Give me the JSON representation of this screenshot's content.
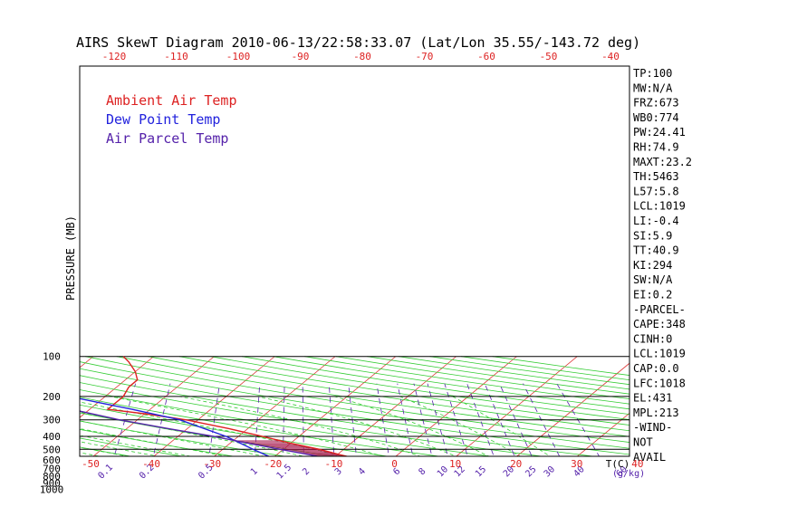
{
  "chart_data": {
    "type": "line",
    "title": "AIRS SkewT Diagram 2010-06-13/22:58:33.07 (Lat/Lon 35.55/-143.72 deg)",
    "ylabel": "PRESSURE (MB)",
    "pressure_ticks": [
      "100",
      "200",
      "300",
      "400",
      "500",
      "600",
      "700",
      "800",
      "900",
      "1000"
    ],
    "top_temp_ticks": [
      "-120",
      "-110",
      "-100",
      "-90",
      "-80",
      "-70",
      "-60",
      "-50",
      "-40"
    ],
    "bottom_temp_ticks": [
      "-50",
      "-40",
      "-30",
      "-20",
      "-10",
      "0",
      "10",
      "20",
      "30",
      "40"
    ],
    "bottom_unit": "T(C)",
    "mixing_ratio_labels": [
      "0.1",
      "0.2",
      "0.5",
      "1",
      "1.5",
      "2",
      "3",
      "4",
      "6",
      "8",
      "10",
      "12",
      "15",
      "20",
      "25",
      "30",
      "40",
      "60"
    ],
    "mixing_ratio_unit": "(g/kg)",
    "legend": [
      {
        "label": "Ambient Air Temp",
        "color": "#dd2222"
      },
      {
        "label": "Dew Point Temp",
        "color": "#2222dd"
      },
      {
        "label": "Air Parcel Temp",
        "color": "#5522aa"
      }
    ],
    "ylim": [
      1050,
      100
    ],
    "series": [
      {
        "name": "Ambient Air Temp",
        "color": "#dd2222",
        "pressure": [
          1000,
          950,
          900,
          850,
          800,
          750,
          700,
          650,
          600,
          550,
          500,
          450,
          400,
          350,
          300,
          270,
          250,
          200,
          170,
          150,
          130,
          110,
          100
        ],
        "temp": [
          20,
          15,
          12,
          10,
          8,
          5.5,
          2.5,
          -1,
          -5,
          -9.5,
          -14,
          -20,
          -26,
          -33,
          -42,
          -50,
          -57,
          -57,
          -58,
          -58,
          -60,
          -63,
          -65
        ]
      },
      {
        "name": "Dew Point Temp",
        "color": "#2222dd",
        "pressure": [
          1000,
          950,
          900,
          850,
          800,
          700,
          600,
          500,
          400,
          300,
          250,
          200,
          160,
          130,
          110,
          100
        ],
        "temp": [
          17,
          11,
          4,
          -1,
          -5,
          -13,
          -19,
          -25,
          -32,
          -43,
          -53,
          -66,
          -80,
          -90,
          -94,
          -96
        ]
      },
      {
        "name": "Air Parcel Temp",
        "color": "#5522aa",
        "pressure": [
          1000,
          950,
          900,
          850,
          800,
          750,
          700,
          650,
          600,
          550,
          500,
          450,
          400,
          350,
          300,
          250,
          200,
          160,
          130,
          100
        ],
        "temp": [
          20,
          15.3,
          12.6,
          9.6,
          6.3,
          2.9,
          -1,
          -5,
          -9.5,
          -14.5,
          -20.5,
          -27,
          -34,
          -43,
          -53,
          -63,
          -74,
          -86,
          -98,
          -115
        ]
      }
    ],
    "indices": [
      "TP:100",
      "MW:N/A",
      "FRZ:673",
      "WB0:774",
      "PW:24.41",
      "RH:74.9",
      "MAXT:23.2",
      "TH:5463",
      "L57:5.8",
      "LCL:1019",
      "LI:-0.4",
      "SI:5.9",
      "TT:40.9",
      "KI:294",
      "SW:N/A",
      "EI:0.2",
      "-PARCEL-",
      "CAPE:348",
      "CINH:0",
      "LCL:1019",
      "CAP:0.0",
      "LFC:1018",
      "EL:431",
      "MPL:213",
      "-WIND-",
      "NOT",
      "AVAIL"
    ]
  }
}
